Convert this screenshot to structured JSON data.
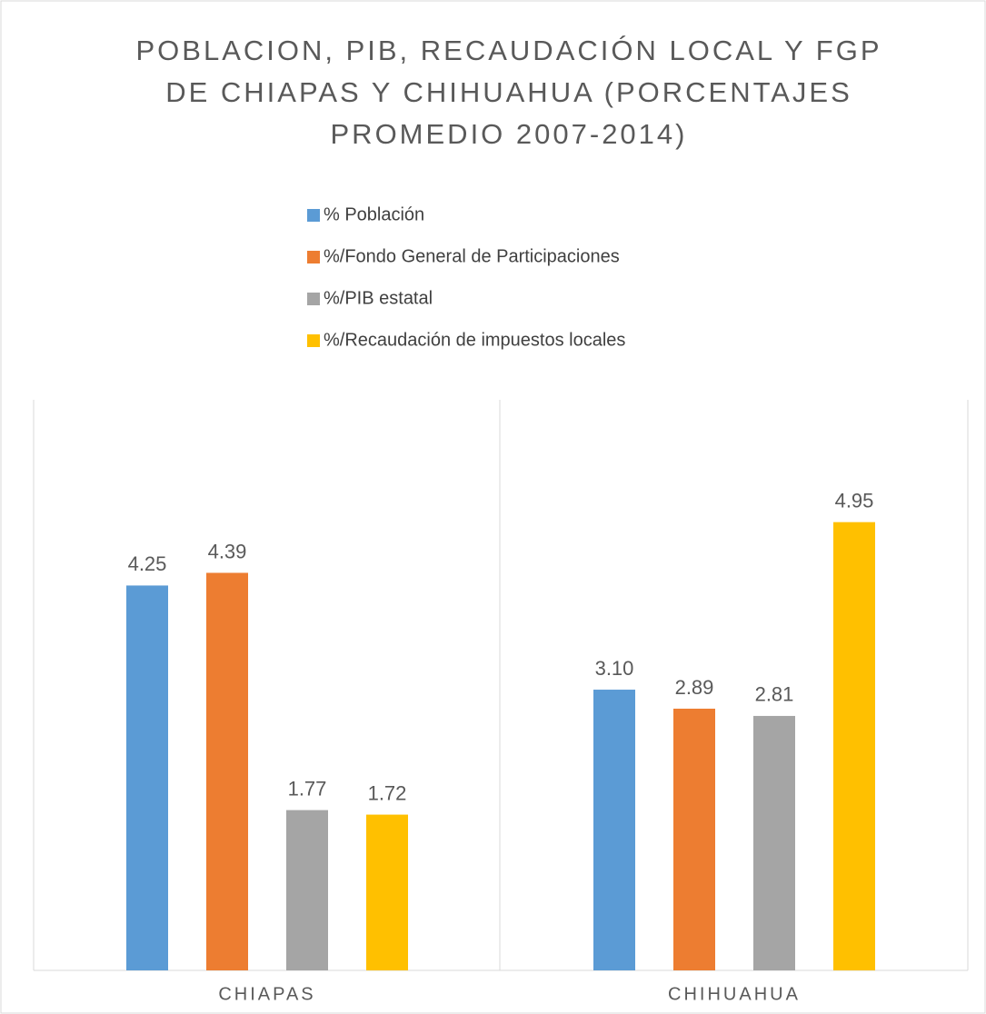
{
  "chart_data": {
    "type": "bar",
    "title": [
      "POBLACION, PIB, RECAUDACIÓN LOCAL Y FGP",
      "DE CHIAPAS Y CHIHUAHUA (PORCENTAJES",
      "PROMEDIO 2007-2014)"
    ],
    "categories": [
      "CHIAPAS",
      "CHIHUAHUA"
    ],
    "series": [
      {
        "name": "% Población",
        "color": "#5b9bd5",
        "values": [
          4.25,
          3.1
        ],
        "value_labels": [
          "4.25",
          "3.10"
        ]
      },
      {
        "name": "%/Fondo General de Participaciones",
        "color": "#ed7d31",
        "values": [
          4.39,
          2.89
        ],
        "value_labels": [
          "4.39",
          "2.89"
        ]
      },
      {
        "name": "%/PIB estatal",
        "color": "#a5a5a5",
        "values": [
          1.77,
          2.81
        ],
        "value_labels": [
          "1.77",
          "2.81"
        ]
      },
      {
        "name": "%/Recaudación de impuestos locales",
        "color": "#ffc000",
        "values": [
          1.72,
          4.95
        ],
        "value_labels": [
          "1.72",
          "4.95"
        ]
      }
    ],
    "ylim": [
      0,
      6
    ]
  }
}
